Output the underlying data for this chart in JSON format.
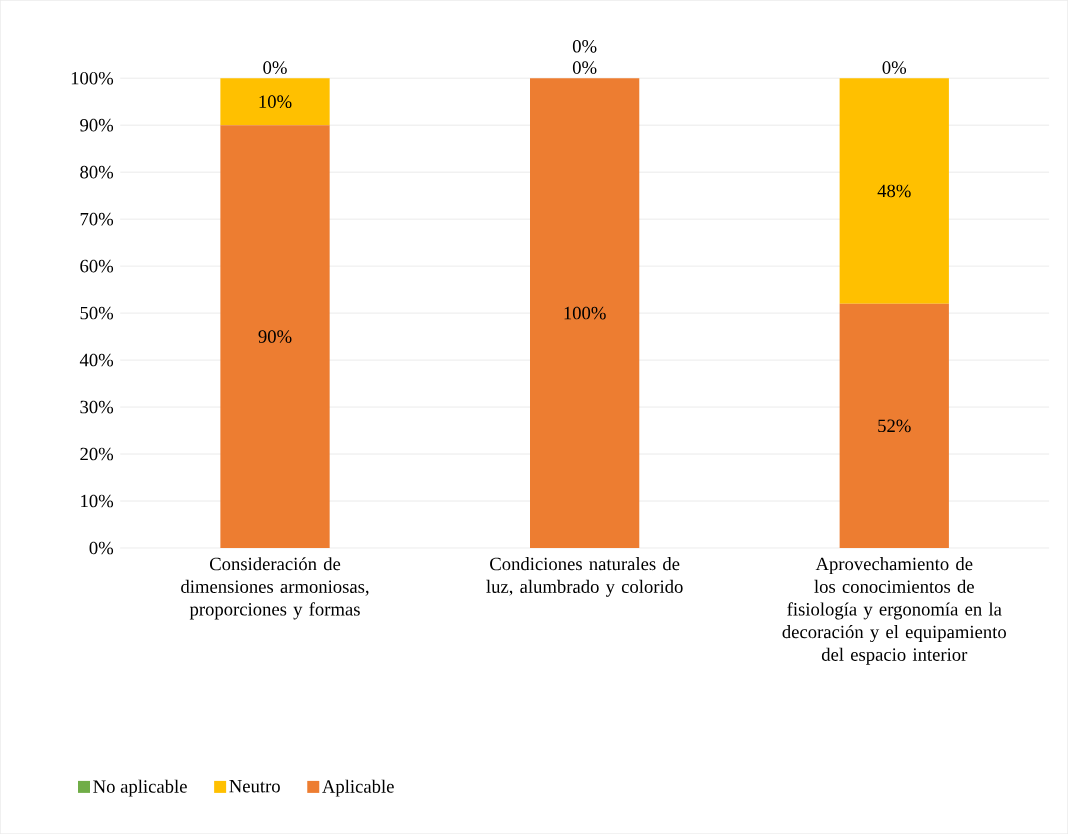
{
  "chart_data": {
    "type": "bar",
    "stacked": true,
    "categories": [
      "Consideración de dimensiones armoniosas, proporciones y formas",
      "Condiciones naturales de luz, alumbrado y colorido",
      "Aprovechamiento de los conocimientos de fisiología y ergonomía en la decoración y el equipamiento del espacio interior"
    ],
    "series": [
      {
        "name": "Aplicable",
        "color": "#ed7d31",
        "values": [
          90,
          100,
          52
        ],
        "value_labels": [
          "90%",
          "100%",
          "52%"
        ]
      },
      {
        "name": "Neutro",
        "color": "#ffc000",
        "values": [
          10,
          0,
          48
        ],
        "value_labels": [
          "10%",
          "0%",
          "48%"
        ]
      },
      {
        "name": "No aplicable",
        "color": "#70ad47",
        "values": [
          0,
          0,
          0
        ],
        "value_labels": [
          "0%",
          "0%",
          "0%"
        ]
      }
    ],
    "ylim": [
      0,
      100
    ],
    "yticks": [
      {
        "value": 0,
        "label": "0%"
      },
      {
        "value": 10,
        "label": "10%"
      },
      {
        "value": 20,
        "label": "20%"
      },
      {
        "value": 30,
        "label": "30%"
      },
      {
        "value": 40,
        "label": "40%"
      },
      {
        "value": 50,
        "label": "50%"
      },
      {
        "value": 60,
        "label": "60%"
      },
      {
        "value": 70,
        "label": "70%"
      },
      {
        "value": 80,
        "label": "80%"
      },
      {
        "value": 90,
        "label": "90%"
      },
      {
        "value": 100,
        "label": "100%"
      }
    ],
    "grid": "y",
    "legend": "bottom"
  }
}
